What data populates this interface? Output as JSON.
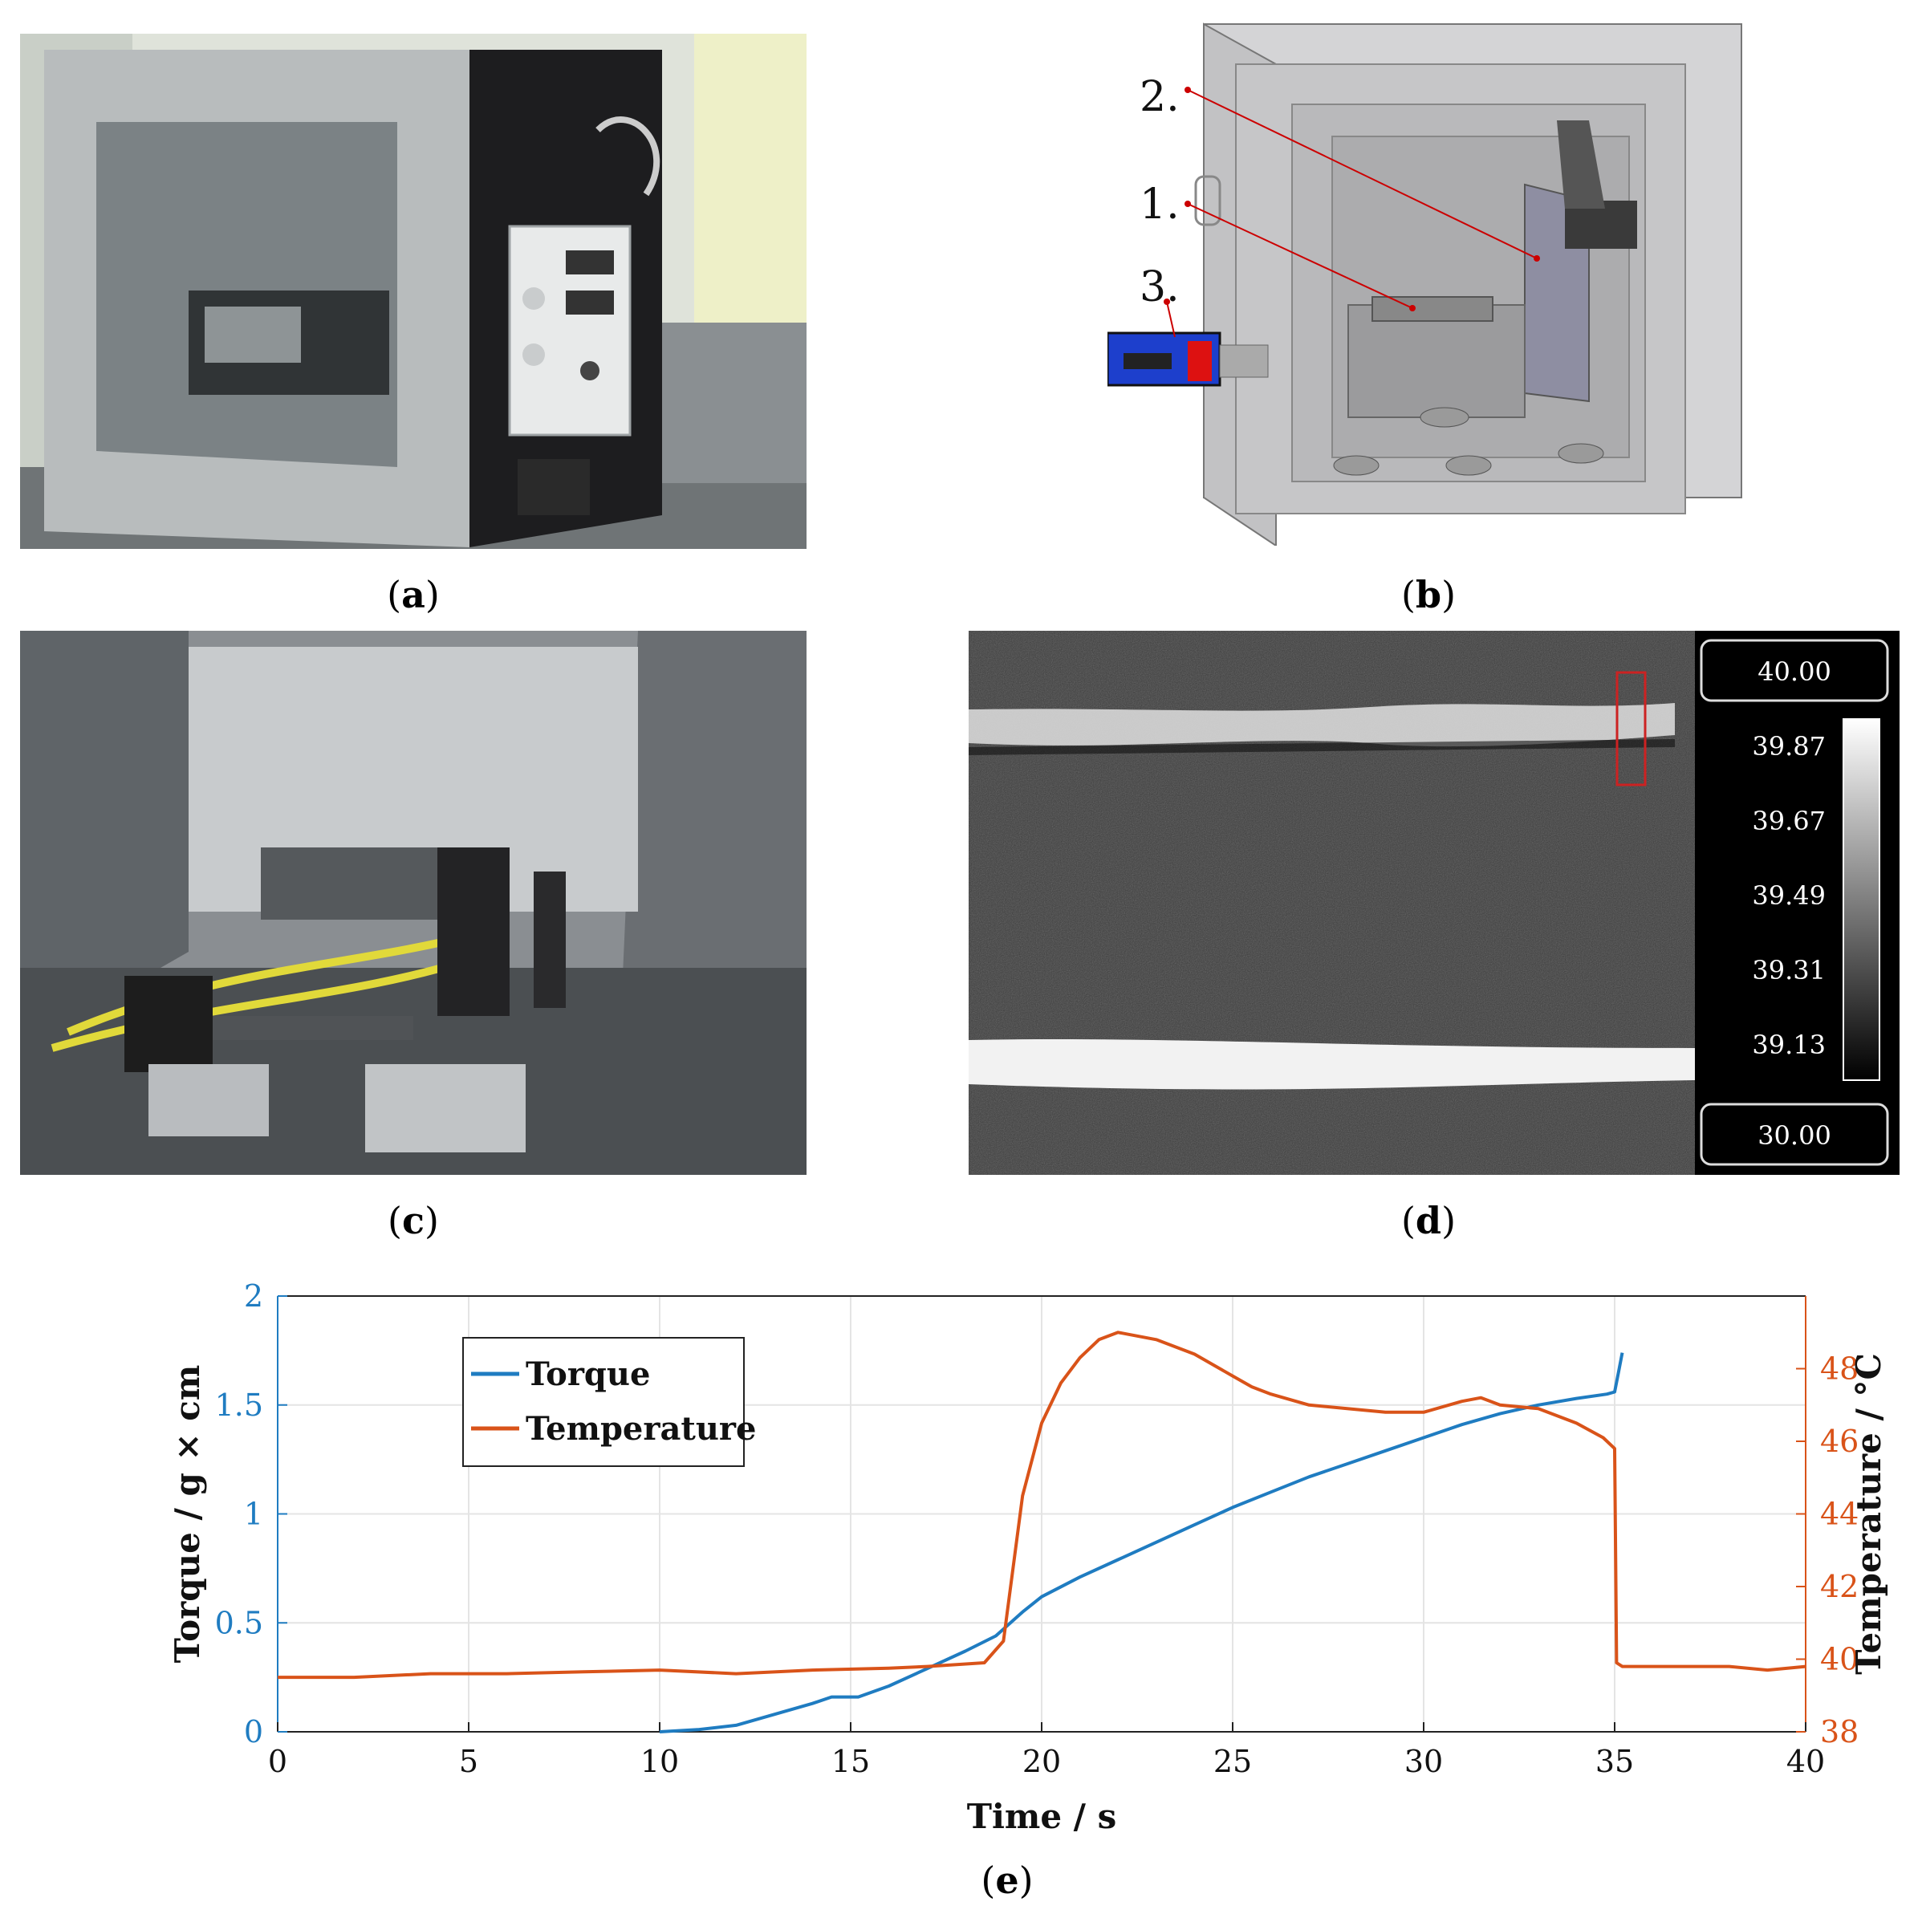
{
  "panels": {
    "a": {
      "caption_open": "(",
      "caption_letter": "a",
      "caption_close": ")"
    },
    "b": {
      "caption_open": "(",
      "caption_letter": "b",
      "caption_close": ")",
      "labels": [
        "2.",
        "1.",
        "3."
      ]
    },
    "c": {
      "caption_open": "(",
      "caption_letter": "c",
      "caption_close": ")"
    },
    "d": {
      "caption_open": "(",
      "caption_letter": "d",
      "caption_close": ")",
      "scale_max": "40.00",
      "scale_min": "30.00",
      "scale_ticks": [
        "39.87",
        "39.67",
        "39.49",
        "39.31",
        "39.13"
      ]
    },
    "e": {
      "caption_open": "(",
      "caption_letter": "e",
      "caption_close": ")"
    }
  },
  "colors": {
    "torque": "#1f7cc1",
    "temperature": "#d95319"
  },
  "chart_data": {
    "type": "line",
    "xlabel": "Time / s",
    "ylabel_left": "Torque / g × cm",
    "ylabel_right": "Temperature / °C",
    "xlim": [
      0,
      40
    ],
    "ylim_left": [
      0,
      2
    ],
    "ylim_right": [
      38,
      50
    ],
    "xticks": [
      "0",
      "5",
      "10",
      "15",
      "20",
      "25",
      "30",
      "35",
      "40"
    ],
    "yticks_left": [
      "0",
      "0.5",
      "1",
      "1.5",
      "2"
    ],
    "yticks_right": [
      "38",
      "40",
      "42",
      "44",
      "46",
      "48"
    ],
    "grid": true,
    "legend_position": "top-left",
    "series": [
      {
        "name": "Torque",
        "axis": "left",
        "x": [
          10,
          11,
          12,
          13,
          14,
          14.5,
          15.2,
          16,
          17,
          18,
          18.8,
          19.5,
          20,
          21,
          22,
          23,
          24,
          25,
          26,
          27,
          28,
          29,
          30,
          31,
          32,
          33,
          34,
          34.8,
          35.0,
          35.1,
          35.2
        ],
        "y": [
          0,
          0.01,
          0.03,
          0.08,
          0.13,
          0.16,
          0.16,
          0.21,
          0.29,
          0.37,
          0.44,
          0.55,
          0.62,
          0.71,
          0.79,
          0.87,
          0.95,
          1.03,
          1.1,
          1.17,
          1.23,
          1.29,
          1.35,
          1.41,
          1.46,
          1.5,
          1.53,
          1.55,
          1.56,
          1.65,
          1.74
        ]
      },
      {
        "name": "Temperature",
        "axis": "right",
        "x": [
          0,
          2,
          4,
          6,
          8,
          10,
          12,
          14,
          16,
          17,
          18.5,
          19.0,
          19.5,
          20,
          20.5,
          21,
          21.5,
          22,
          23,
          24,
          25,
          25.5,
          26,
          27,
          28,
          29,
          30,
          31,
          31.5,
          32,
          33,
          34,
          34.7,
          35.0,
          35.05,
          35.2,
          36,
          37,
          38,
          39,
          40
        ],
        "y": [
          39.5,
          39.5,
          39.6,
          39.6,
          39.65,
          39.7,
          39.6,
          39.7,
          39.75,
          39.8,
          39.9,
          40.5,
          44.5,
          46.5,
          47.6,
          48.3,
          48.8,
          49.0,
          48.8,
          48.4,
          47.8,
          47.5,
          47.3,
          47.0,
          46.9,
          46.8,
          46.8,
          47.1,
          47.2,
          47.0,
          46.9,
          46.5,
          46.1,
          45.8,
          39.9,
          39.8,
          39.8,
          39.8,
          39.8,
          39.7,
          39.8
        ]
      }
    ]
  }
}
